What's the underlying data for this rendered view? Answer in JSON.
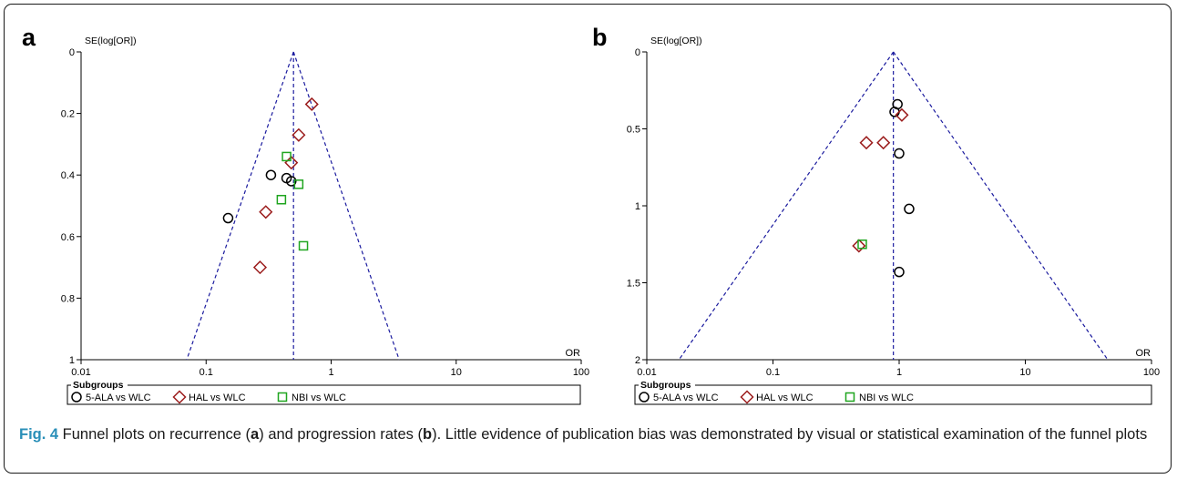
{
  "panels": [
    {
      "letter": "a"
    },
    {
      "letter": "b"
    }
  ],
  "caption": {
    "fig": "Fig. 4",
    "before_a": " Funnel plots on recurrence (",
    "a": "a",
    "middle": ") and progression rates (",
    "b": "b",
    "after_b": "). Little evidence of publication bias was demonstrated by visual or statistical examination of the funnel plots"
  },
  "colors": {
    "5-ALA vs WLC": "#000000",
    "HAL vs WLC": "#9b1c1c",
    "NBI vs WLC": "#1fa51f",
    "funnel": "#1a1a9e"
  },
  "chart_data": [
    {
      "type": "scatter",
      "title": "",
      "xlabel": "OR",
      "ylabel": "SE(log[OR])",
      "x_scale": "log",
      "xlim": [
        0.01,
        100
      ],
      "ylim": [
        0,
        1
      ],
      "y_inverted": true,
      "xticks": [
        "0.01",
        "0.1",
        "1",
        "10",
        "100"
      ],
      "yticks": [
        "0",
        "0.2",
        "0.4",
        "0.6",
        "0.8",
        "1"
      ],
      "ytick_values": [
        0,
        0.2,
        0.4,
        0.6,
        0.8,
        1
      ],
      "pooled_or": 0.5,
      "funnel_base": [
        0.07,
        3.5
      ],
      "legend_title": "Subgroups",
      "legend_position": "bottom",
      "series": [
        {
          "name": "5-ALA vs WLC",
          "marker": "circle",
          "points": [
            [
              0.15,
              0.54
            ],
            [
              0.33,
              0.4
            ],
            [
              0.44,
              0.41
            ],
            [
              0.48,
              0.42
            ]
          ]
        },
        {
          "name": "HAL vs WLC",
          "marker": "diamond",
          "points": [
            [
              0.7,
              0.17
            ],
            [
              0.55,
              0.27
            ],
            [
              0.48,
              0.36
            ],
            [
              0.3,
              0.52
            ],
            [
              0.27,
              0.7
            ]
          ]
        },
        {
          "name": "NBI vs WLC",
          "marker": "square",
          "points": [
            [
              0.44,
              0.34
            ],
            [
              0.55,
              0.43
            ],
            [
              0.4,
              0.48
            ],
            [
              0.6,
              0.63
            ]
          ]
        }
      ]
    },
    {
      "type": "scatter",
      "title": "",
      "xlabel": "OR",
      "ylabel": "SE(log[OR])",
      "x_scale": "log",
      "xlim": [
        0.01,
        100
      ],
      "ylim": [
        0,
        2
      ],
      "y_inverted": true,
      "xticks": [
        "0.01",
        "0.1",
        "1",
        "10",
        "100"
      ],
      "yticks": [
        "0",
        "0.5",
        "1",
        "1.5",
        "2"
      ],
      "ytick_values": [
        0,
        0.5,
        1,
        1.5,
        2
      ],
      "pooled_or": 0.9,
      "funnel_base": [
        0.018,
        45
      ],
      "legend_title": "Subgroups",
      "legend_position": "bottom",
      "series": [
        {
          "name": "5-ALA vs WLC",
          "marker": "circle",
          "points": [
            [
              0.97,
              0.34
            ],
            [
              0.92,
              0.39
            ],
            [
              1.0,
              0.66
            ],
            [
              1.2,
              1.02
            ],
            [
              1.0,
              1.43
            ]
          ]
        },
        {
          "name": "HAL vs WLC",
          "marker": "diamond",
          "points": [
            [
              1.05,
              0.41
            ],
            [
              0.55,
              0.59
            ],
            [
              0.75,
              0.59
            ],
            [
              0.48,
              1.26
            ]
          ]
        },
        {
          "name": "NBI vs WLC",
          "marker": "square",
          "points": [
            [
              0.51,
              1.25
            ]
          ]
        }
      ]
    }
  ]
}
